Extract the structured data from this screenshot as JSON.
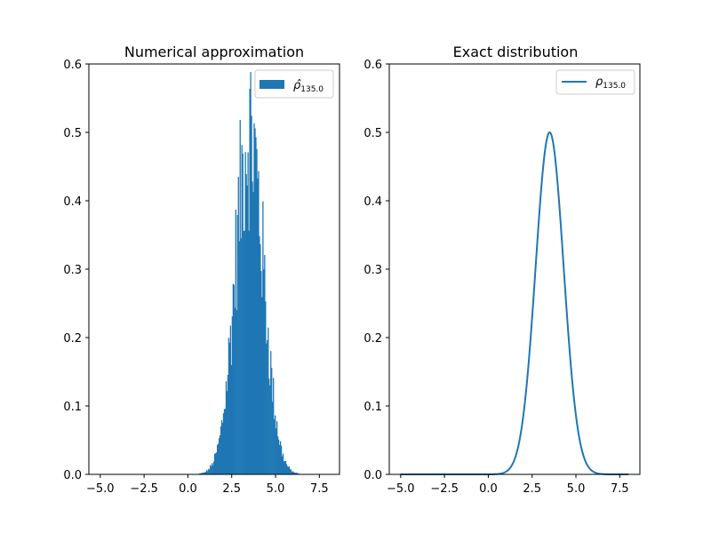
{
  "chart_data": [
    {
      "type": "bar",
      "title": "Numerical approximation",
      "xlabel": "",
      "ylabel": "",
      "xlim": [
        -5.65,
        8.65
      ],
      "ylim": [
        0,
        0.6
      ],
      "xticks": [
        "−5.0",
        "−2.5",
        "0.0",
        "2.5",
        "5.0",
        "7.5"
      ],
      "xtick_values": [
        -5,
        -2.5,
        0,
        2.5,
        5,
        7.5
      ],
      "yticks": [
        "0.0",
        "0.1",
        "0.2",
        "0.3",
        "0.4",
        "0.5",
        "0.6"
      ],
      "ytick_values": [
        0,
        0.1,
        0.2,
        0.3,
        0.4,
        0.5,
        0.6
      ],
      "legend": {
        "placement": "top-right",
        "label": "ρ̂",
        "subscript": "135.0",
        "color": "#1f77b4"
      },
      "series": [
        {
          "bin_width": 0.05,
          "x_start": 0.6,
          "x_end": 7.0,
          "mean": 3.5,
          "sd": 0.8,
          "peak": 0.5,
          "noise_amplitude": 0.09
        }
      ]
    },
    {
      "type": "line",
      "title": "Exact distribution",
      "xlabel": "",
      "ylabel": "",
      "xlim": [
        -5.65,
        8.65
      ],
      "ylim": [
        0,
        0.6
      ],
      "xticks": [
        "−5.0",
        "−2.5",
        "0.0",
        "2.5",
        "5.0",
        "7.5"
      ],
      "xtick_values": [
        -5,
        -2.5,
        0,
        2.5,
        5,
        7.5
      ],
      "yticks": [
        "0.0",
        "0.1",
        "0.2",
        "0.3",
        "0.4",
        "0.5",
        "0.6"
      ],
      "ytick_values": [
        0,
        0.1,
        0.2,
        0.3,
        0.4,
        0.5,
        0.6
      ],
      "legend": {
        "placement": "top-right",
        "label": "ρ",
        "subscript": "135.0",
        "color": "#1f77b4"
      },
      "series": [
        {
          "x_start": -5.0,
          "x_end": 8.0,
          "mean": 3.5,
          "sd": 0.8,
          "peak": 0.5
        }
      ]
    }
  ]
}
